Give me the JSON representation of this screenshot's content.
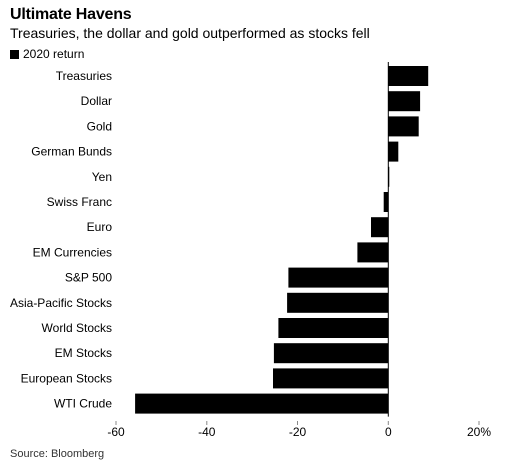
{
  "title": "Ultimate Havens",
  "subtitle": "Treasuries, the dollar and gold outperformed as stocks fell",
  "source": "Source: Bloomberg",
  "chart_data": {
    "type": "bar",
    "orientation": "horizontal",
    "title": "Ultimate Havens",
    "subtitle": "Treasuries, the dollar and gold outperformed as stocks fell",
    "xlabel": "",
    "ylabel": "",
    "xlim": [
      -60,
      20
    ],
    "grid": false,
    "legend": "top-left",
    "categories": [
      "Treasuries",
      "Dollar",
      "Gold",
      "German Bunds",
      "Yen",
      "Swiss Franc",
      "Euro",
      "EM Currencies",
      "S&P 500",
      "Asia-Pacific Stocks",
      "World Stocks",
      "EM Stocks",
      "European Stocks",
      "WTI Crude"
    ],
    "series": [
      {
        "name": "2020 return",
        "color": "#000000",
        "values": [
          8.8,
          7,
          6.7,
          2.2,
          0.1,
          -1,
          -3.8,
          -6.8,
          -22,
          -22.3,
          -24.2,
          -25.2,
          -25.4,
          -55.8
        ]
      }
    ],
    "tick_values": [
      -60,
      -40,
      -20,
      0,
      20
    ],
    "tick_labels": [
      "-60",
      "-40",
      "-20",
      "0",
      "20%"
    ]
  }
}
